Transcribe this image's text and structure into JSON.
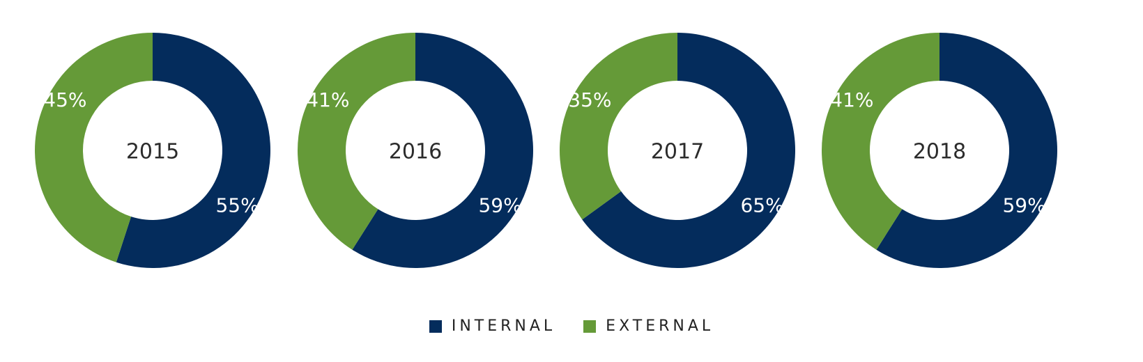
{
  "colors": {
    "internal": "#042c5c",
    "external": "#659a38",
    "center_text": "#2b2b2b",
    "slice_label": "#ffffff"
  },
  "legend": {
    "internal_label": "INTERNAL",
    "external_label": "EXTERNAL"
  },
  "chart_data": [
    {
      "type": "pie",
      "center_label": "2015",
      "series": [
        {
          "name": "INTERNAL",
          "value": 55,
          "label": "55%"
        },
        {
          "name": "EXTERNAL",
          "value": 45,
          "label": "45%"
        }
      ]
    },
    {
      "type": "pie",
      "center_label": "2016",
      "series": [
        {
          "name": "INTERNAL",
          "value": 59,
          "label": "59%"
        },
        {
          "name": "EXTERNAL",
          "value": 41,
          "label": "41%"
        }
      ]
    },
    {
      "type": "pie",
      "center_label": "2017",
      "series": [
        {
          "name": "INTERNAL",
          "value": 65,
          "label": "65%"
        },
        {
          "name": "EXTERNAL",
          "value": 35,
          "label": "35%"
        }
      ]
    },
    {
      "type": "pie",
      "center_label": "2018",
      "series": [
        {
          "name": "INTERNAL",
          "value": 59,
          "label": "59%"
        },
        {
          "name": "EXTERNAL",
          "value": 41,
          "label": "41%"
        }
      ]
    }
  ]
}
